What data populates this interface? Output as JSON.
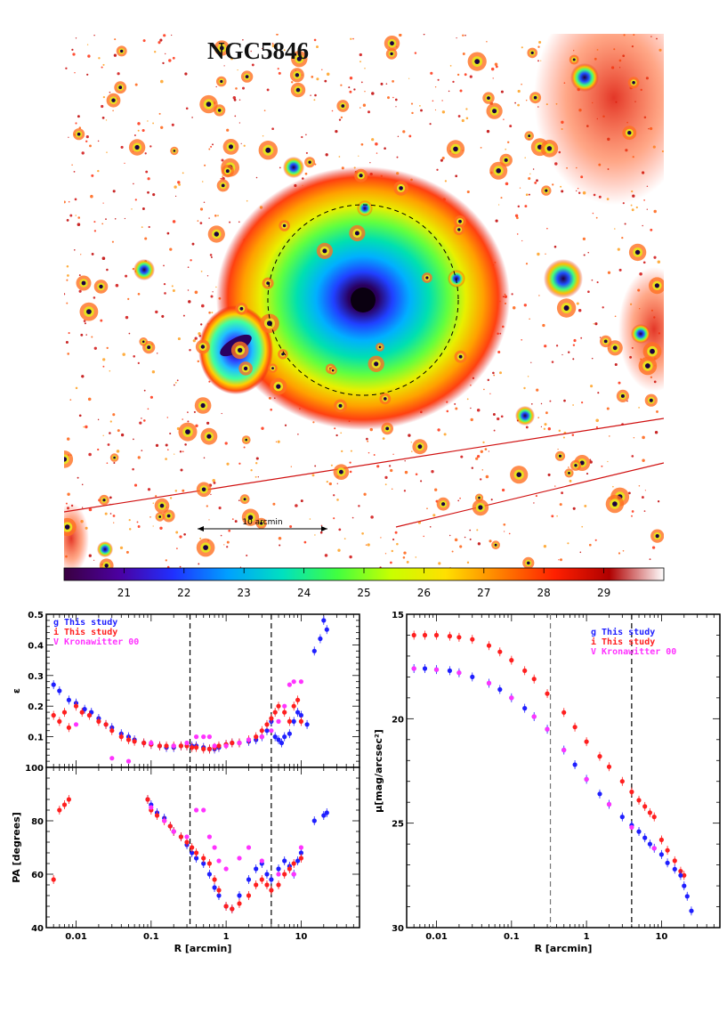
{
  "image_panel": {
    "title": "NGC5846",
    "scale_bar_label": "10 arcmin",
    "colorbar_ticks": [
      21,
      22,
      23,
      24,
      25,
      26,
      27,
      28,
      29
    ],
    "colorbar_colors": [
      "#3a0040",
      "#4b00a0",
      "#2030ff",
      "#00a0ff",
      "#00e0c0",
      "#40ff40",
      "#c8ff00",
      "#ffe000",
      "#ff8000",
      "#ff2000",
      "#b00000",
      "#ffffff"
    ],
    "colors": {
      "core": "#1a0020",
      "halo": "#ff7a10",
      "outer": "#d01010",
      "star": "#ff3030"
    }
  },
  "chart_data": [
    {
      "type": "scatter",
      "title": "",
      "xlabel": "",
      "ylabel": "ε",
      "xscale": "log",
      "xlim": [
        0.004,
        60
      ],
      "ylim": [
        0,
        0.5
      ],
      "yticks": [
        0.1,
        0.2,
        0.3,
        0.4,
        0.5
      ],
      "vlines": [
        0.33,
        4.0
      ],
      "legend": [
        {
          "label": "g This study",
          "color": "#1f1fff"
        },
        {
          "label": "i This study",
          "color": "#ff1f1f"
        },
        {
          "label": "V Kronawitter 00",
          "color": "#ff33ff"
        }
      ],
      "series": [
        {
          "name": "g",
          "color": "#1f1fff",
          "x": [
            0.005,
            0.006,
            0.008,
            0.01,
            0.013,
            0.016,
            0.02,
            0.025,
            0.03,
            0.04,
            0.05,
            0.06,
            0.08,
            0.1,
            0.13,
            0.16,
            0.2,
            0.25,
            0.3,
            0.35,
            0.4,
            0.5,
            0.6,
            0.7,
            0.8,
            1.0,
            1.2,
            1.5,
            2.0,
            2.5,
            3.0,
            3.5,
            4.0,
            4.5,
            5.0,
            5.5,
            6.0,
            7.0,
            8.0,
            9.0,
            10.0,
            12.0,
            15.0,
            18.0,
            20.0,
            22.0
          ],
          "y": [
            0.27,
            0.25,
            0.22,
            0.21,
            0.19,
            0.18,
            0.16,
            0.14,
            0.13,
            0.11,
            0.1,
            0.09,
            0.08,
            0.075,
            0.07,
            0.065,
            0.065,
            0.07,
            0.07,
            0.07,
            0.07,
            0.065,
            0.06,
            0.06,
            0.065,
            0.075,
            0.08,
            0.08,
            0.085,
            0.09,
            0.1,
            0.12,
            0.15,
            0.1,
            0.09,
            0.08,
            0.1,
            0.11,
            0.15,
            0.18,
            0.17,
            0.14,
            0.38,
            0.42,
            0.48,
            0.45
          ]
        },
        {
          "name": "i",
          "color": "#ff1f1f",
          "x": [
            0.005,
            0.006,
            0.007,
            0.008,
            0.01,
            0.012,
            0.015,
            0.02,
            0.025,
            0.03,
            0.04,
            0.05,
            0.06,
            0.08,
            0.1,
            0.13,
            0.16,
            0.2,
            0.25,
            0.3,
            0.35,
            0.4,
            0.5,
            0.6,
            0.7,
            0.8,
            1.0,
            1.2,
            1.5,
            2.0,
            2.5,
            3.0,
            3.5,
            4.0,
            4.5,
            5.0,
            6.0,
            7.0,
            8.0,
            9.0,
            10.0
          ],
          "y": [
            0.17,
            0.15,
            0.18,
            0.13,
            0.2,
            0.18,
            0.17,
            0.15,
            0.14,
            0.12,
            0.1,
            0.09,
            0.085,
            0.08,
            0.075,
            0.07,
            0.07,
            0.07,
            0.07,
            0.07,
            0.065,
            0.065,
            0.06,
            0.06,
            0.065,
            0.07,
            0.075,
            0.08,
            0.08,
            0.09,
            0.1,
            0.12,
            0.14,
            0.16,
            0.18,
            0.2,
            0.18,
            0.15,
            0.2,
            0.22,
            0.15
          ]
        },
        {
          "name": "V",
          "color": "#ff33ff",
          "x": [
            0.01,
            0.03,
            0.05,
            0.1,
            0.2,
            0.3,
            0.4,
            0.5,
            0.6,
            0.7,
            1.0,
            1.5,
            2.0,
            3.0,
            4.0,
            5.0,
            6.0,
            7.0,
            8.0,
            10.0
          ],
          "y": [
            0.14,
            0.03,
            0.02,
            0.08,
            0.07,
            0.08,
            0.1,
            0.1,
            0.1,
            0.07,
            0.07,
            0.08,
            0.09,
            0.1,
            0.12,
            0.15,
            0.2,
            0.27,
            0.28,
            0.28
          ]
        }
      ]
    },
    {
      "type": "scatter",
      "title": "",
      "xlabel": "R [arcmin]",
      "ylabel": "PA [degrees]",
      "xscale": "log",
      "xlim": [
        0.004,
        60
      ],
      "ylim": [
        40,
        100
      ],
      "yticks": [
        40,
        60,
        80,
        100
      ],
      "xticks": [
        0.01,
        0.1,
        1,
        10
      ],
      "vlines": [
        0.33,
        4.0
      ],
      "series": [
        {
          "name": "g",
          "color": "#1f1fff",
          "x": [
            0.09,
            0.1,
            0.12,
            0.15,
            0.18,
            0.2,
            0.25,
            0.3,
            0.35,
            0.4,
            0.5,
            0.6,
            0.7,
            0.8,
            1.0,
            1.2,
            1.5,
            2.0,
            2.5,
            3.0,
            3.5,
            4.0,
            5.0,
            6.0,
            7.0,
            8.0,
            9.0,
            10.0,
            15.0,
            20.0,
            22.0
          ],
          "y": [
            88,
            86,
            83,
            81,
            78,
            76,
            74,
            71,
            68,
            66,
            64,
            60,
            55,
            52,
            48,
            47,
            52,
            58,
            62,
            64,
            60,
            58,
            62,
            65,
            63,
            60,
            65,
            68,
            80,
            82,
            83
          ]
        },
        {
          "name": "i",
          "color": "#ff1f1f",
          "x": [
            0.005,
            0.006,
            0.007,
            0.008,
            0.09,
            0.1,
            0.12,
            0.15,
            0.18,
            0.2,
            0.25,
            0.3,
            0.35,
            0.4,
            0.5,
            0.6,
            0.7,
            0.8,
            1.0,
            1.2,
            1.5,
            2.0,
            2.5,
            3.0,
            3.5,
            4.0,
            5.0,
            6.0,
            7.0,
            8.0,
            10.0
          ],
          "y": [
            58,
            84,
            86,
            88,
            88,
            84,
            82,
            80,
            78,
            76,
            74,
            72,
            70,
            68,
            66,
            64,
            58,
            54,
            48,
            47,
            49,
            52,
            56,
            58,
            56,
            54,
            56,
            60,
            62,
            64,
            66
          ]
        },
        {
          "name": "V",
          "color": "#ff33ff",
          "x": [
            0.1,
            0.15,
            0.2,
            0.3,
            0.4,
            0.5,
            0.6,
            0.7,
            0.8,
            1.0,
            1.5,
            2.0,
            3.0,
            5.0,
            8.0,
            10.0
          ],
          "y": [
            85,
            80,
            76,
            74,
            84,
            84,
            74,
            70,
            65,
            62,
            66,
            70,
            65,
            60,
            60,
            70
          ]
        }
      ]
    },
    {
      "type": "scatter",
      "title": "",
      "xlabel": "R [arcmin]",
      "ylabel": "μ[mag/arcsec²]",
      "xscale": "log",
      "xlim": [
        0.004,
        60
      ],
      "ylim": [
        30,
        15
      ],
      "yticks": [
        15,
        20,
        25,
        30
      ],
      "xticks": [
        0.01,
        0.1,
        1,
        10
      ],
      "vlines": [
        0.33,
        4.0
      ],
      "legend": [
        {
          "label": "g This study",
          "color": "#1f1fff"
        },
        {
          "label": "i This study",
          "color": "#ff1f1f"
        },
        {
          "label": "V Kronawitter 00",
          "color": "#ff33ff"
        }
      ],
      "series": [
        {
          "name": "i",
          "color": "#ff1f1f",
          "x": [
            0.005,
            0.007,
            0.01,
            0.015,
            0.02,
            0.03,
            0.05,
            0.07,
            0.1,
            0.15,
            0.2,
            0.3,
            0.5,
            0.7,
            1.0,
            1.5,
            2.0,
            3.0,
            4.0,
            5.0,
            6.0,
            7.0,
            8.0,
            10.0,
            12.0,
            15.0,
            18.0,
            20.0
          ],
          "y": [
            16.0,
            16.0,
            16.0,
            16.05,
            16.1,
            16.2,
            16.5,
            16.8,
            17.2,
            17.7,
            18.1,
            18.8,
            19.7,
            20.4,
            21.1,
            21.8,
            22.3,
            23.0,
            23.5,
            23.9,
            24.2,
            24.5,
            24.7,
            25.8,
            26.3,
            26.8,
            27.3,
            27.5
          ]
        },
        {
          "name": "g",
          "color": "#1f1fff",
          "x": [
            0.005,
            0.007,
            0.01,
            0.015,
            0.02,
            0.03,
            0.05,
            0.07,
            0.1,
            0.15,
            0.2,
            0.3,
            0.5,
            0.7,
            1.0,
            1.5,
            2.0,
            3.0,
            4.0,
            5.0,
            6.0,
            7.0,
            8.0,
            10.0,
            12.0,
            15.0,
            18.0,
            20.0,
            22.0,
            25.0
          ],
          "y": [
            17.6,
            17.6,
            17.65,
            17.7,
            17.8,
            18.0,
            18.3,
            18.6,
            19.0,
            19.5,
            19.9,
            20.5,
            21.5,
            22.2,
            22.9,
            23.6,
            24.1,
            24.7,
            25.1,
            25.4,
            25.7,
            26.0,
            26.2,
            26.5,
            26.9,
            27.2,
            27.5,
            28.0,
            28.5,
            29.2
          ]
        },
        {
          "name": "V",
          "color": "#ff33ff",
          "x": [
            0.005,
            0.01,
            0.02,
            0.05,
            0.1,
            0.2,
            0.3,
            0.5,
            1.0,
            2.0,
            4.0,
            8.0
          ],
          "y": [
            17.6,
            17.65,
            17.8,
            18.3,
            19.0,
            19.9,
            20.5,
            21.5,
            22.9,
            24.1,
            25.2,
            26.2
          ]
        }
      ]
    }
  ]
}
